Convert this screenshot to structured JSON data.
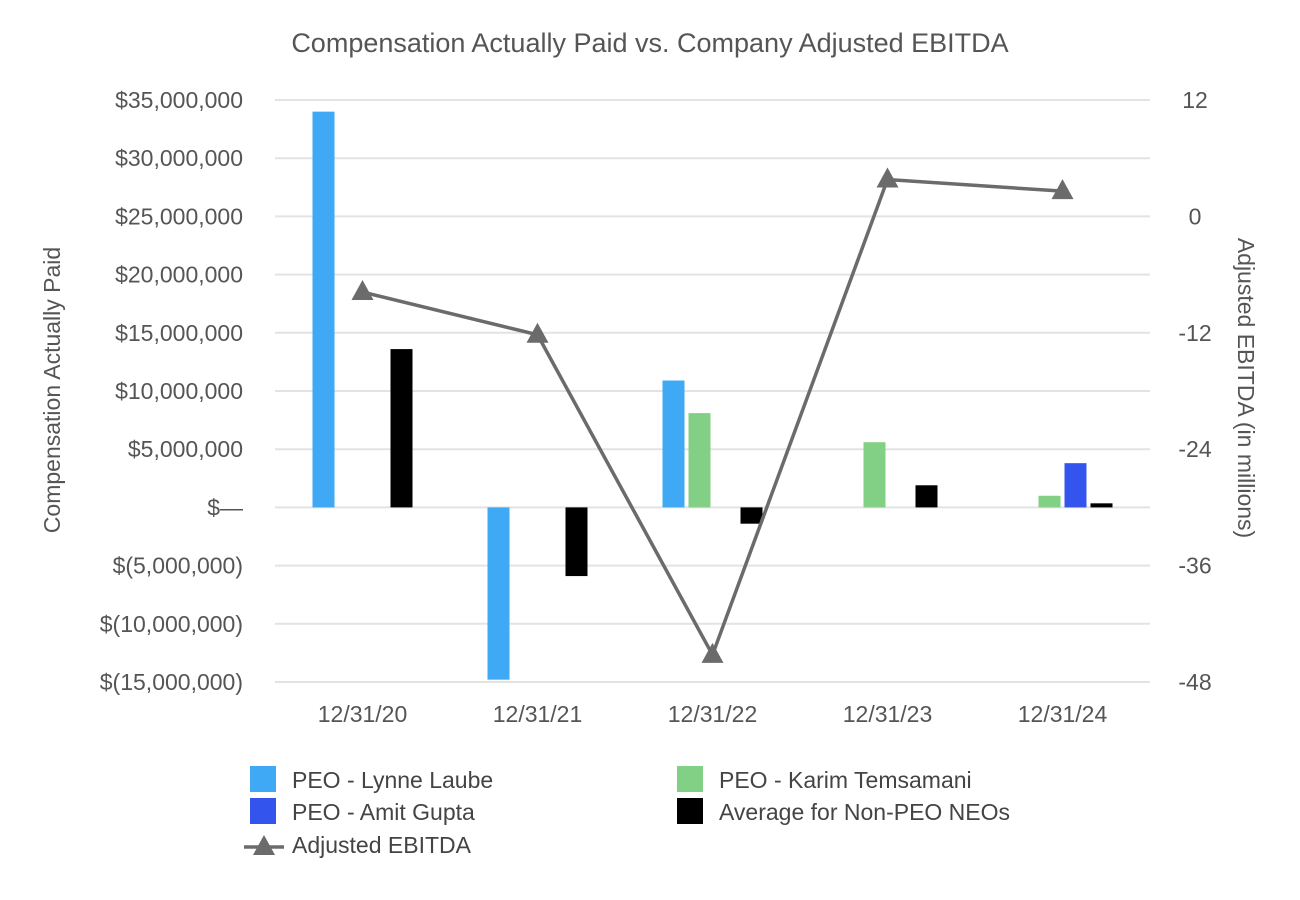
{
  "chart_data": {
    "type": "bar",
    "title": "Compensation Actually Paid vs. Company Adjusted EBITDA",
    "categories": [
      "12/31/20",
      "12/31/21",
      "12/31/22",
      "12/31/23",
      "12/31/24"
    ],
    "ylabel": "Compensation Actually Paid",
    "ylabel_right": "Adjusted EBITDA (in millions)",
    "ylim": [
      -15000000,
      35000000
    ],
    "ylim_right": [
      -48,
      12
    ],
    "yticks": [
      {
        "value": 35000000,
        "label": "$35,000,000"
      },
      {
        "value": 30000000,
        "label": "$30,000,000"
      },
      {
        "value": 25000000,
        "label": "$25,000,000"
      },
      {
        "value": 20000000,
        "label": "$20,000,000"
      },
      {
        "value": 15000000,
        "label": "$15,000,000"
      },
      {
        "value": 10000000,
        "label": "$10,000,000"
      },
      {
        "value": 5000000,
        "label": "$5,000,000"
      },
      {
        "value": 0,
        "label": "$—"
      },
      {
        "value": -5000000,
        "label": "$(5,000,000)"
      },
      {
        "value": -10000000,
        "label": "$(10,000,000)"
      },
      {
        "value": -15000000,
        "label": "$(15,000,000)"
      }
    ],
    "yticks_right": [
      {
        "value": 12,
        "label": "12"
      },
      {
        "value": 0,
        "label": "0"
      },
      {
        "value": -12,
        "label": "-12"
      },
      {
        "value": -24,
        "label": "-24"
      },
      {
        "value": -36,
        "label": "-36"
      },
      {
        "value": -48,
        "label": "-48"
      }
    ],
    "series": [
      {
        "name": "PEO - Lynne Laube",
        "color": "#3fa9f5",
        "values": [
          34000000,
          -14800000,
          10900000,
          null,
          null
        ]
      },
      {
        "name": "PEO - Karim Temsamani",
        "color": "#82cf86",
        "values": [
          null,
          null,
          8100000,
          5600000,
          1000000
        ]
      },
      {
        "name": "PEO - Amit Gupta",
        "color": "#3355ee",
        "values": [
          null,
          null,
          null,
          null,
          3800000
        ]
      },
      {
        "name": "Average for Non-PEO NEOs",
        "color": "#000000",
        "values": [
          13600000,
          -5900000,
          -1400000,
          1900000,
          350000
        ]
      }
    ],
    "line_series": {
      "name": "Adjusted EBITDA",
      "color": "#6b6b6b",
      "values": [
        -7.8,
        -12.2,
        -45.2,
        3.8,
        2.6
      ]
    },
    "legend": [
      {
        "label": "PEO - Lynne Laube",
        "type": "box",
        "color": "#3fa9f5"
      },
      {
        "label": "PEO - Karim Temsamani",
        "type": "box",
        "color": "#82cf86"
      },
      {
        "label": "PEO - Amit Gupta",
        "type": "box",
        "color": "#3355ee"
      },
      {
        "label": "Average for Non-PEO NEOs",
        "type": "box",
        "color": "#000000"
      },
      {
        "label": "Adjusted EBITDA",
        "type": "line-triangle",
        "color": "#6b6b6b"
      }
    ],
    "grid": true
  }
}
